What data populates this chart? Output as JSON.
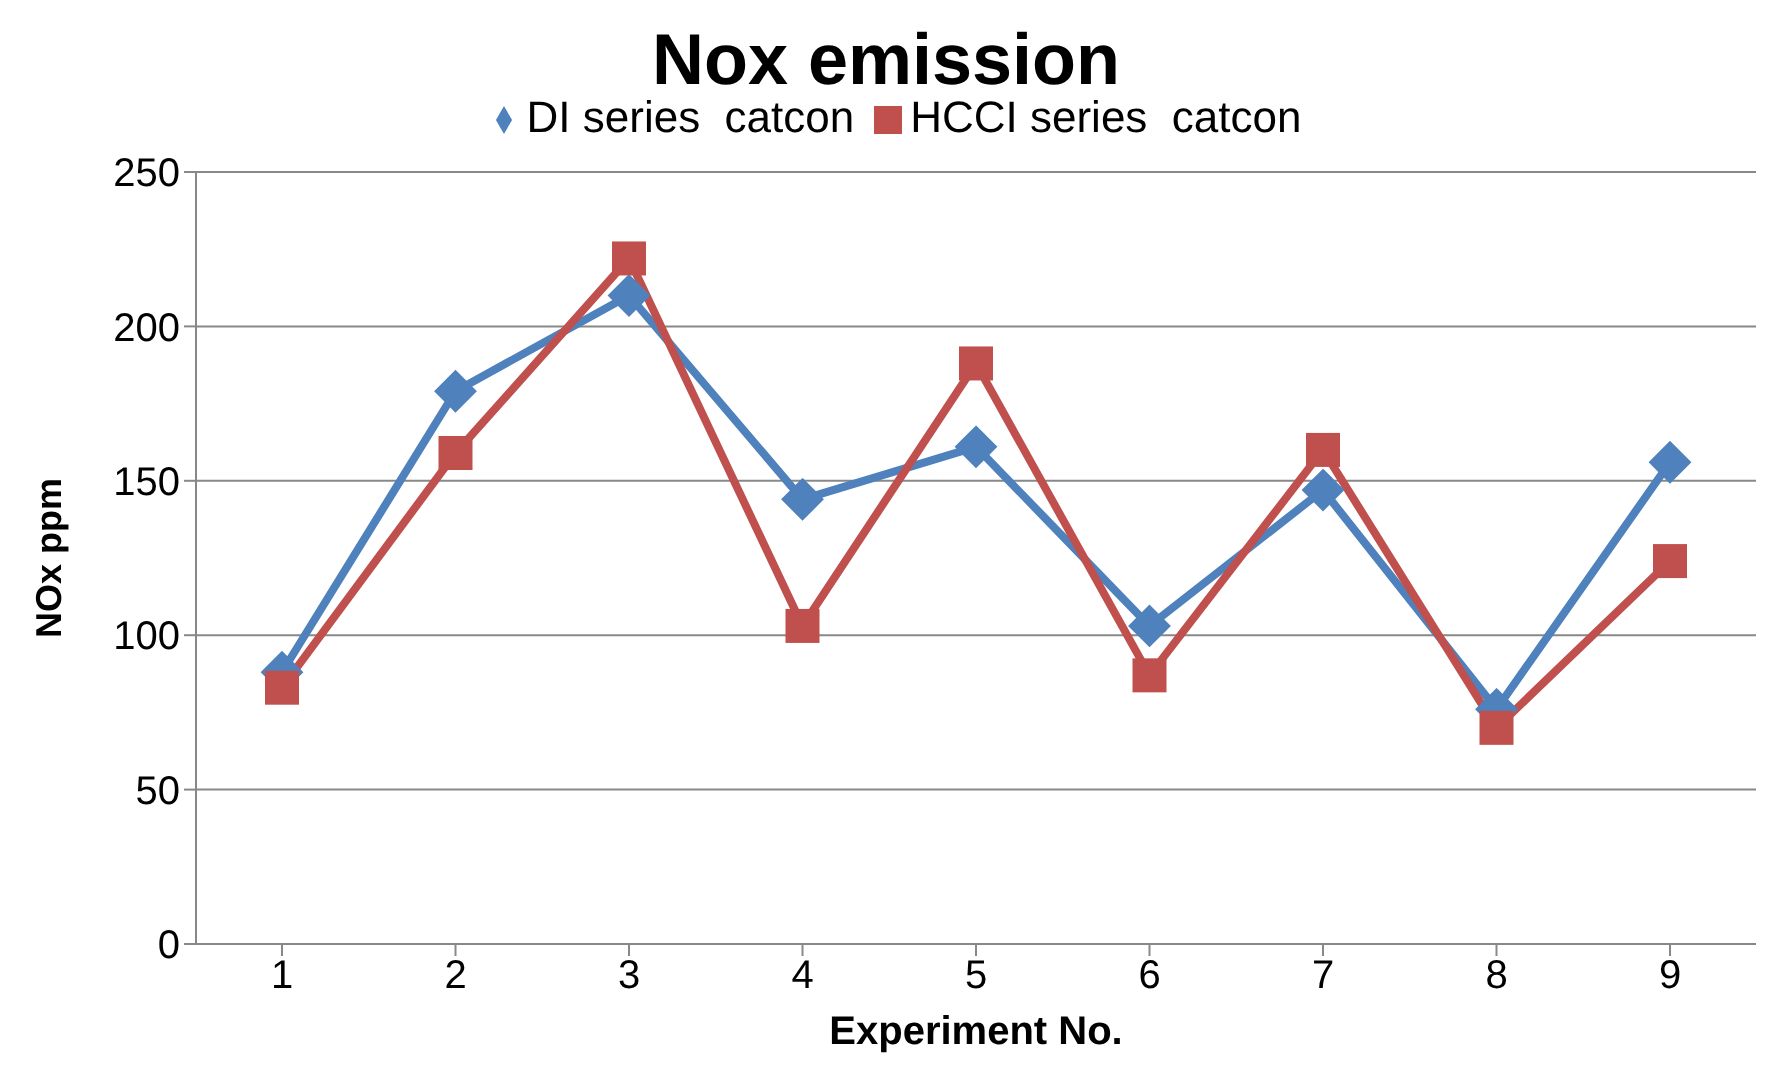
{
  "chart_data": {
    "type": "line",
    "title": "Nox emission",
    "xlabel": "Experiment No.",
    "ylabel": "NOx ppm",
    "categories": [
      "1",
      "2",
      "3",
      "4",
      "5",
      "6",
      "7",
      "8",
      "9"
    ],
    "series": [
      {
        "name": "DI series  catcon",
        "color": "#4f81bd",
        "marker": "diamond",
        "values": [
          88,
          179,
          210,
          144,
          161,
          103,
          147,
          76,
          156
        ]
      },
      {
        "name": "HCCI series  catcon",
        "color": "#c0504d",
        "marker": "square",
        "values": [
          83,
          159,
          222,
          103,
          188,
          87,
          160,
          70,
          124
        ]
      }
    ],
    "ylim": [
      0,
      250
    ],
    "yticks": [
      0,
      50,
      100,
      150,
      200,
      250
    ],
    "grid": "y",
    "legend": "top"
  }
}
